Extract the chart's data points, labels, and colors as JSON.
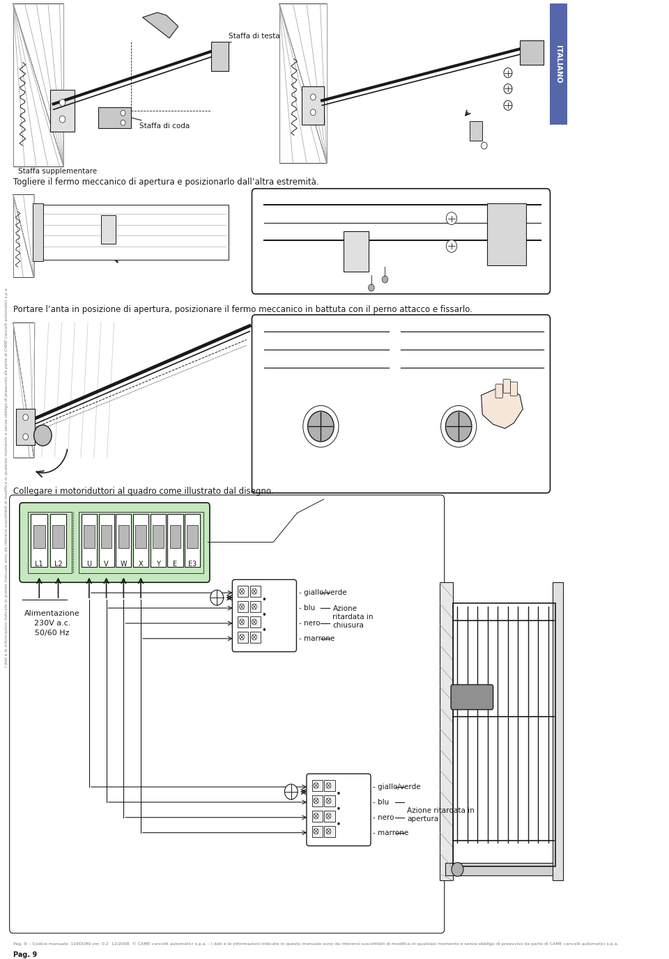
{
  "background_color": "#ffffff",
  "page_width": 9.6,
  "page_height": 13.77,
  "sidebar_color": "#5566aa",
  "section1_text": "Togliere il fermo meccanico di apertura e posizionarlo dall’altra estremità.",
  "section2_text": "Portare l’anta in posizione di apertura, posizionare il fermo meccanico in battuta con il perno attacco e fissarlo.",
  "section3_text": "Collegare i motoriduttori al quadro come illustrato dal disegno.",
  "staffa_testa": "Staffa di testa",
  "staffa_coda": "Staffa di coda",
  "staffa_supplementare": "Staffa supplementare",
  "wiring_labels": [
    "giallo/verde",
    "blu",
    "nero",
    "marrone"
  ],
  "wiring_action1": "Azione\nritardata in\nchiusura",
  "wiring_action2": "Azione ritardata in\napertura",
  "terminal_group1": [
    "L1",
    "L2"
  ],
  "terminal_group2": [
    "U",
    "V",
    "W",
    "X",
    "Y",
    "E",
    "E3"
  ],
  "alimentazione_text": "Alimentazione\n230V a.c.\n50/60 Hz",
  "footer_page": "Pag. 9",
  "footer_code": "Codice manuale: 119DU80 ver. 0.2  12/2008  © CAME cancelli automatici s.p.a.",
  "footer_note": " - I dati e le informazioni indicate in questo manuale sono da ritenersi suscettibili di modifica in qualsiasi momento e senza obbligo di preavviso da parte di CAME cancelli automatici s.p.a.",
  "vertical_note": "I dati e le informazioni indicate in questo manuale sono da ritenersi suscettibili di modifica in qualsiasi momento e senza obbligo di preavviso da parte di CAME cancelli automatici s.p.a.",
  "terminal_bg": "#c5e8bf",
  "line_color": "#1a1a1a",
  "text_color": "#1a1a1a",
  "gray_color": "#777777",
  "light_gray": "#d0d0d0",
  "mid_gray": "#999999"
}
